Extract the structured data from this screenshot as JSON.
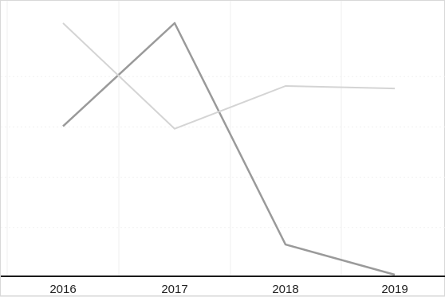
{
  "chart_data": {
    "type": "line",
    "title": "",
    "xlabel": "",
    "ylabel": "",
    "categories": [
      "2016",
      "2017",
      "2018",
      "2019"
    ],
    "ylim": [
      0,
      100
    ],
    "grid": true,
    "legend": "none",
    "series": [
      {
        "color": "#9a9a9a",
        "values": [
          59,
          100,
          12,
          0
        ]
      },
      {
        "color": "#d4d4d4",
        "values": [
          100,
          58,
          75,
          74
        ]
      }
    ]
  }
}
